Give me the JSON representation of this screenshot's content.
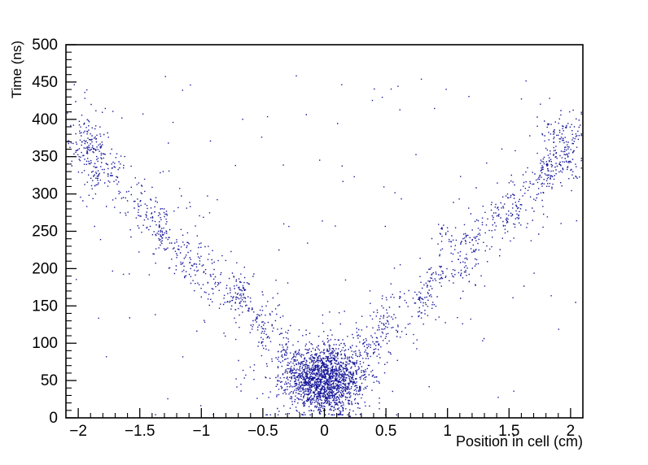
{
  "figure": {
    "background_color": "#ffffff",
    "frame_color": "#000000",
    "title": ""
  },
  "chart_data": {
    "type": "scatter",
    "title": "",
    "xlabel": "Position in cell (cm)",
    "ylabel": "Time (ns)",
    "xlim": [
      -2.1,
      2.1
    ],
    "ylim": [
      0,
      500
    ],
    "x_major_ticks": [
      -2,
      -1.5,
      -1,
      -0.5,
      0,
      0.5,
      1,
      1.5,
      2
    ],
    "x_major_labels": [
      "−2",
      "−1.5",
      "−1",
      "−0.5",
      "0",
      "0.5",
      "1",
      "1.5",
      "2"
    ],
    "x_minor_step": 0.1,
    "y_major_ticks": [
      0,
      50,
      100,
      150,
      200,
      250,
      300,
      350,
      400,
      450,
      500
    ],
    "y_major_labels": [
      "0",
      "50",
      "100",
      "150",
      "200",
      "250",
      "300",
      "350",
      "400",
      "450",
      "500"
    ],
    "y_minor_step": 10,
    "grid": false,
    "legend": null,
    "marker_color": "#17179a",
    "marker_size_px": 1.4,
    "description": "V-shaped scatter of drift time versus position in cell: dense blob near (0, 50 ns), two linear arms rising to ~370-430 ns at |x| ~ 2 cm, with clumpy band structure and sparse background points.",
    "distribution": {
      "seed": 20,
      "total_points_approx": 3500,
      "center_blob": {
        "n": 1600,
        "x_mean": 0.0,
        "x_sigma": 0.155,
        "t_mean": 50,
        "t_sigma": 22,
        "t_clip": [
          4,
          128
        ],
        "x_clip": [
          -0.6,
          0.6
        ]
      },
      "center_halo": {
        "n": 220,
        "x_mean": 0.0,
        "x_sigma": 0.3,
        "t_mean": 62,
        "t_sigma": 34,
        "t_clip": [
          4,
          170
        ]
      },
      "arm": {
        "t0": 42,
        "slope_ns_per_cm": 162,
        "x_start": 0.2,
        "x_end": 2.06,
        "clusters_per_side": 62,
        "cluster_pts_min": 5,
        "cluster_pts_max": 12,
        "cluster_x_sigma": 0.033,
        "cluster_t_sigma": 10,
        "band_t_sigma": 18,
        "diffuse_per_side": 140,
        "diffuse_t_sigma": 38
      },
      "end_cluster": {
        "n_per_side": 120,
        "x_mean": 1.92,
        "x_sigma": 0.09,
        "t_mean": 366,
        "t_sigma": 26
      },
      "background": {
        "n": 130,
        "x_range": [
          -2.08,
          2.08
        ],
        "t_range": [
          4,
          460
        ]
      }
    }
  }
}
